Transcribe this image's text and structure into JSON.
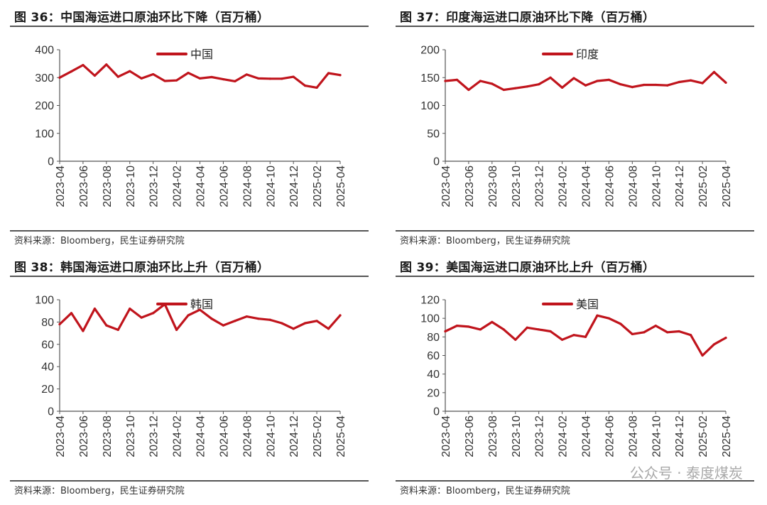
{
  "source_text": "资料来源：Bloomberg，民生证券研究院",
  "watermark": "公众号 · 泰度煤炭",
  "colors": {
    "series": "#c0141c",
    "axis": "#555555"
  },
  "chart_data": [
    {
      "id": "china",
      "type": "line",
      "title": "图 36：中国海运进口原油环比下降（百万桶）",
      "xlabel": "",
      "ylabel": "",
      "ylim": [
        0,
        400
      ],
      "yticks": [
        0,
        100,
        200,
        300,
        400
      ],
      "x": [
        "2023-04",
        "2023-05",
        "2023-06",
        "2023-07",
        "2023-08",
        "2023-09",
        "2023-10",
        "2023-11",
        "2023-12",
        "2024-01",
        "2024-02",
        "2024-03",
        "2024-04",
        "2024-05",
        "2024-06",
        "2024-07",
        "2024-08",
        "2024-09",
        "2024-10",
        "2024-11",
        "2024-12",
        "2025-01",
        "2025-02",
        "2025-03",
        "2025-04"
      ],
      "xtick_labels": [
        "2023-04",
        "2023-06",
        "2023-08",
        "2023-10",
        "2023-12",
        "2024-02",
        "2024-04",
        "2024-06",
        "2024-08",
        "2024-10",
        "2024-12",
        "2025-02",
        "2025-04"
      ],
      "series": [
        {
          "name": "中国",
          "values": [
            300,
            322,
            345,
            307,
            347,
            303,
            323,
            297,
            312,
            288,
            290,
            317,
            297,
            302,
            294,
            287,
            311,
            297,
            296,
            296,
            303,
            271,
            264,
            316,
            309
          ]
        }
      ],
      "legend": "top-center",
      "grid": false
    },
    {
      "id": "india",
      "type": "line",
      "title": "图 37：印度海运进口原油环比下降（百万桶）",
      "xlabel": "",
      "ylabel": "",
      "ylim": [
        0,
        200
      ],
      "yticks": [
        0,
        50,
        100,
        150,
        200
      ],
      "x": [
        "2023-04",
        "2023-05",
        "2023-06",
        "2023-07",
        "2023-08",
        "2023-09",
        "2023-10",
        "2023-11",
        "2023-12",
        "2024-01",
        "2024-02",
        "2024-03",
        "2024-04",
        "2024-05",
        "2024-06",
        "2024-07",
        "2024-08",
        "2024-09",
        "2024-10",
        "2024-11",
        "2024-12",
        "2025-01",
        "2025-02",
        "2025-03",
        "2025-04"
      ],
      "xtick_labels": [
        "2023-04",
        "2023-06",
        "2023-08",
        "2023-10",
        "2023-12",
        "2024-02",
        "2024-04",
        "2024-06",
        "2024-08",
        "2024-10",
        "2024-12",
        "2025-02",
        "2025-04"
      ],
      "series": [
        {
          "name": "印度",
          "values": [
            144,
            146,
            128,
            144,
            139,
            128,
            131,
            134,
            138,
            150,
            132,
            149,
            136,
            144,
            146,
            138,
            133,
            137,
            137,
            136,
            142,
            145,
            140,
            160,
            141
          ]
        }
      ],
      "legend": "top-center",
      "grid": false
    },
    {
      "id": "korea",
      "type": "line",
      "title": "图 38：韩国海运进口原油环比上升（百万桶）",
      "xlabel": "",
      "ylabel": "",
      "ylim": [
        0,
        100
      ],
      "yticks": [
        0,
        20,
        40,
        60,
        80,
        100
      ],
      "x": [
        "2023-04",
        "2023-05",
        "2023-06",
        "2023-07",
        "2023-08",
        "2023-09",
        "2023-10",
        "2023-11",
        "2023-12",
        "2024-01",
        "2024-02",
        "2024-03",
        "2024-04",
        "2024-05",
        "2024-06",
        "2024-07",
        "2024-08",
        "2024-09",
        "2024-10",
        "2024-11",
        "2024-12",
        "2025-01",
        "2025-02",
        "2025-03",
        "2025-04"
      ],
      "xtick_labels": [
        "2023-04",
        "2023-06",
        "2023-08",
        "2023-10",
        "2023-12",
        "2024-02",
        "2024-04",
        "2024-06",
        "2024-08",
        "2024-10",
        "2024-12",
        "2025-02",
        "2025-04"
      ],
      "series": [
        {
          "name": "韩国",
          "values": [
            78,
            88,
            72,
            92,
            77,
            73,
            92,
            84,
            88,
            96,
            73,
            86,
            91,
            83,
            77,
            81,
            85,
            83,
            82,
            79,
            74,
            79,
            81,
            74,
            86
          ]
        }
      ],
      "legend": "top-center",
      "grid": false
    },
    {
      "id": "usa",
      "type": "line",
      "title": "图 39：美国海运进口原油环比上升（百万桶）",
      "xlabel": "",
      "ylabel": "",
      "ylim": [
        0,
        120
      ],
      "yticks": [
        0,
        20,
        40,
        60,
        80,
        100,
        120
      ],
      "x": [
        "2023-04",
        "2023-05",
        "2023-06",
        "2023-07",
        "2023-08",
        "2023-09",
        "2023-10",
        "2023-11",
        "2023-12",
        "2024-01",
        "2024-02",
        "2024-03",
        "2024-04",
        "2024-05",
        "2024-06",
        "2024-07",
        "2024-08",
        "2024-09",
        "2024-10",
        "2024-11",
        "2024-12",
        "2025-01",
        "2025-02",
        "2025-03",
        "2025-04"
      ],
      "xtick_labels": [
        "2023-04",
        "2023-06",
        "2023-08",
        "2023-10",
        "2023-12",
        "2024-02",
        "2024-04",
        "2024-06",
        "2024-08",
        "2024-10",
        "2024-12",
        "2025-02",
        "2025-04"
      ],
      "series": [
        {
          "name": "美国",
          "values": [
            86,
            92,
            91,
            88,
            96,
            88,
            77,
            90,
            88,
            86,
            77,
            82,
            80,
            103,
            100,
            94,
            83,
            85,
            92,
            85,
            86,
            82,
            60,
            72,
            79
          ]
        }
      ],
      "legend": "top-center",
      "grid": false
    }
  ]
}
